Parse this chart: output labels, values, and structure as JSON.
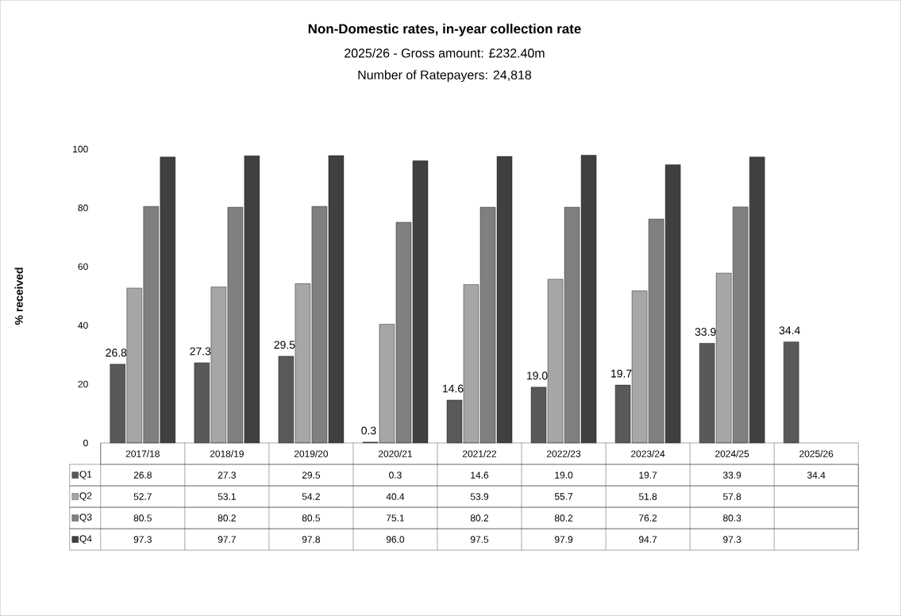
{
  "chart_data": {
    "type": "bar",
    "title": "Non-Domestic rates, in-year collection rate",
    "subtitle": "2025/26 - Gross amount: £232.40m",
    "annotations": [
      "Number of Ratepayers: 24,818"
    ],
    "ylabel": "% received",
    "categories": [
      "2017/18",
      "2018/19",
      "2019/20",
      "2020/21",
      "2021/22",
      "2022/23",
      "2023/24",
      "2024/25",
      "2025/26"
    ],
    "series": [
      {
        "name": "Q1",
        "color": "#595959",
        "values": [
          26.8,
          27.3,
          29.5,
          0.3,
          14.6,
          19.0,
          19.7,
          33.9,
          34.4
        ],
        "value_labels": [
          "26.8",
          "27.3",
          "29.5",
          "0.3",
          "14.6",
          "19.0",
          "19.7",
          "33.9",
          "34.4"
        ]
      },
      {
        "name": "Q2",
        "color": "#a6a6a6",
        "values": [
          52.7,
          53.1,
          54.2,
          40.4,
          53.9,
          55.7,
          51.8,
          57.8,
          null
        ],
        "value_labels": [
          "52.7",
          "53.1",
          "54.2",
          "40.4",
          "53.9",
          "55.7",
          "51.8",
          "57.8",
          null
        ]
      },
      {
        "name": "Q3",
        "color": "#808080",
        "values": [
          80.5,
          80.2,
          80.5,
          75.1,
          80.2,
          80.2,
          76.2,
          80.3,
          null
        ],
        "value_labels": [
          "80.5",
          "80.2",
          "80.5",
          "75.1",
          "80.2",
          "80.2",
          "76.2",
          "80.3",
          null
        ]
      },
      {
        "name": "Q4",
        "color": "#404040",
        "values": [
          97.3,
          97.7,
          97.8,
          96.0,
          97.5,
          97.9,
          94.7,
          97.3,
          null
        ],
        "value_labels": [
          "97.3",
          "97.7",
          "97.8",
          "96.0",
          "97.5",
          "97.9",
          "94.7",
          "97.3",
          null
        ]
      }
    ],
    "ylim": [
      0,
      100
    ],
    "yticks": [
      0,
      20,
      40,
      60,
      80,
      100
    ],
    "legend": "bottom left"
  }
}
